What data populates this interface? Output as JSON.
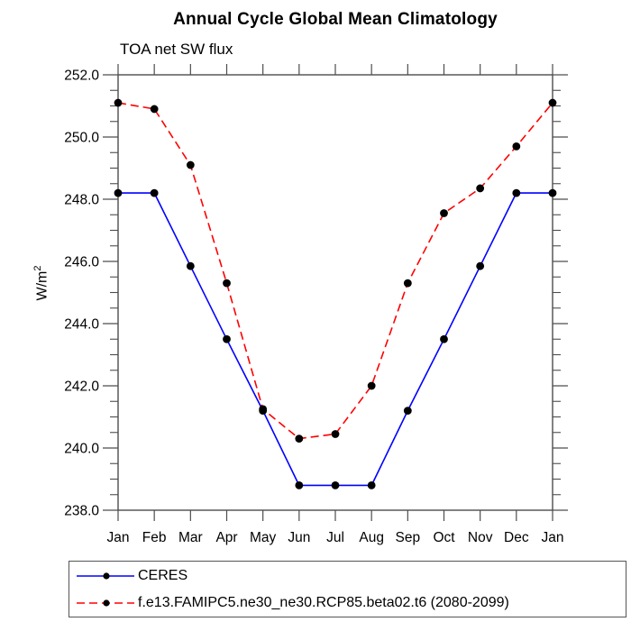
{
  "title": "Annual Cycle Global Mean Climatology",
  "subtitle": "TOA net SW flux",
  "ui": {
    "y_axis_label_base": "W/m",
    "y_axis_label_sup": "2"
  },
  "colors": {
    "axis": "#4d4d4d",
    "text": "#000000",
    "ceres_line": "#0000ff",
    "model_line": "#ff0000",
    "marker": "#000000",
    "background": "#ffffff"
  },
  "chart_data": {
    "type": "line",
    "title": "Annual Cycle Global Mean Climatology",
    "subtitle": "TOA net SW flux",
    "xlabel": "",
    "ylabel": "W/m²",
    "categories": [
      "Jan",
      "Feb",
      "Mar",
      "Apr",
      "May",
      "Jun",
      "Jul",
      "Aug",
      "Sep",
      "Oct",
      "Nov",
      "Dec",
      "Jan"
    ],
    "ylim": [
      238.0,
      252.0
    ],
    "y_major_step": 2.0,
    "y_minor_step": 0.5,
    "y_tick_labels": [
      "238.0",
      "240.0",
      "242.0",
      "244.0",
      "246.0",
      "248.0",
      "250.0",
      "252.0"
    ],
    "grid": false,
    "legend_position": "bottom-left",
    "series": [
      {
        "name": "CERES",
        "color": "#0000ff",
        "style": "solid",
        "marker": "circle",
        "marker_color": "#000000",
        "values": [
          248.2,
          248.2,
          245.85,
          243.5,
          241.2,
          238.8,
          238.8,
          238.8,
          241.2,
          243.5,
          245.85,
          248.2,
          248.2
        ]
      },
      {
        "name": "f.e13.FAMIPC5.ne30_ne30.RCP85.beta02.t6 (2080-2099)",
        "color": "#ff0000",
        "style": "dashed",
        "marker": "circle",
        "marker_color": "#000000",
        "values": [
          251.1,
          250.9,
          249.1,
          245.3,
          241.25,
          240.3,
          240.45,
          242.0,
          245.3,
          247.55,
          248.35,
          249.7,
          251.1
        ]
      }
    ]
  }
}
